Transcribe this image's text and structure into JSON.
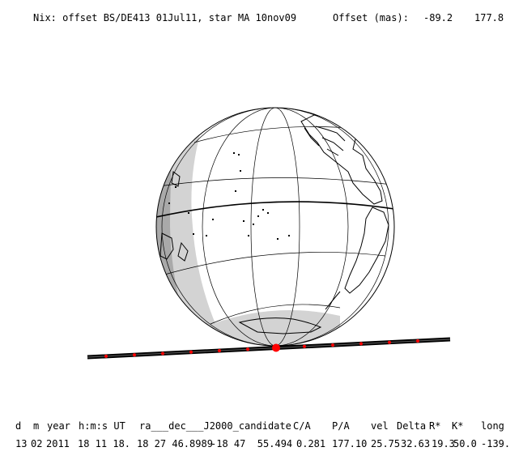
{
  "header": {
    "title": "Nix: offset BS/DE413 01Jul11, star MA 10nov09",
    "offset_label": "Offset (mas):",
    "offset_x": "-89.2",
    "offset_y": "177.8"
  },
  "table": {
    "headers": {
      "d": "d",
      "m": "m",
      "year": "year",
      "hms": "h:m:s UT",
      "ra_dec": "ra___dec___J2000_candidate",
      "ca": "C/A",
      "pa": "P/A",
      "vel": "vel",
      "delta": "Delta",
      "rstar": "R*",
      "kstar": "K*",
      "long": "long"
    },
    "row": {
      "d": "13",
      "m": "02",
      "year": "2011",
      "hms": "18 11 18.",
      "ra": "18 27 46.8989",
      "dec": "-18 47  55.494",
      "ca": "0.281",
      "pa": "177.10",
      "vel": "25.75",
      "delta": "32.63",
      "rstar": "19.3",
      "kstar": "50.0",
      "long": "-139."
    }
  },
  "colors": {
    "night_dark": "#a9a9a9",
    "night_light": "#d3d3d3",
    "land_outline": "#000000",
    "track": "#000000",
    "track_marks": "#ff0000",
    "closest_approach": "#ff0000"
  }
}
